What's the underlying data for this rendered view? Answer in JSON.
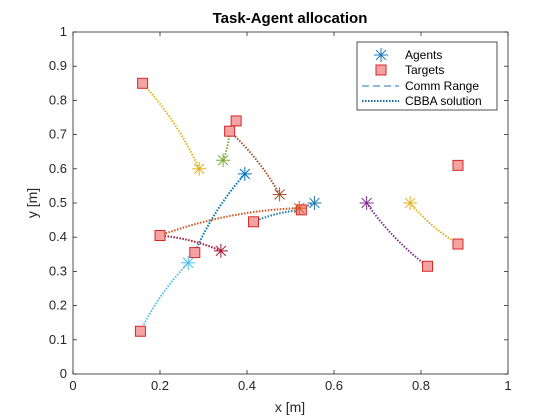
{
  "chart_data": {
    "type": "scatter",
    "title": "Task-Agent allocation",
    "xlabel": "x [m]",
    "ylabel": "y [m]",
    "xlim": [
      0,
      1
    ],
    "ylim": [
      0,
      1
    ],
    "xticks": [
      "0",
      "0.2",
      "0.4",
      "0.6",
      "0.8",
      "1"
    ],
    "yticks": [
      "0",
      "0.1",
      "0.2",
      "0.3",
      "0.4",
      "0.5",
      "0.6",
      "0.7",
      "0.8",
      "0.9",
      "1"
    ],
    "grid": false,
    "legend_position": "top-right",
    "legend": [
      "Agents",
      "Targets",
      "Comm Range",
      "CBBA solution"
    ],
    "targets": [
      {
        "x": 0.16,
        "y": 0.85
      },
      {
        "x": 0.375,
        "y": 0.74
      },
      {
        "x": 0.36,
        "y": 0.71
      },
      {
        "x": 0.885,
        "y": 0.61
      },
      {
        "x": 0.525,
        "y": 0.48
      },
      {
        "x": 0.415,
        "y": 0.445
      },
      {
        "x": 0.2,
        "y": 0.405
      },
      {
        "x": 0.885,
        "y": 0.38
      },
      {
        "x": 0.28,
        "y": 0.355
      },
      {
        "x": 0.815,
        "y": 0.315
      },
      {
        "x": 0.155,
        "y": 0.125
      }
    ],
    "agents": [
      {
        "x": 0.29,
        "y": 0.6,
        "color": "#e0b01c",
        "path": [
          [
            0.16,
            0.85
          ]
        ]
      },
      {
        "x": 0.345,
        "y": 0.625,
        "color": "#77ac30",
        "path": [
          [
            0.36,
            0.71
          ],
          [
            0.375,
            0.74
          ]
        ]
      },
      {
        "x": 0.395,
        "y": 0.585,
        "color": "#0072bd",
        "path": [
          [
            0.28,
            0.355
          ]
        ]
      },
      {
        "x": 0.475,
        "y": 0.525,
        "color": "#a0522d",
        "path": [
          [
            0.36,
            0.71
          ]
        ]
      },
      {
        "x": 0.555,
        "y": 0.5,
        "color": "#1f77b4",
        "path": [
          [
            0.525,
            0.48
          ],
          [
            0.415,
            0.445
          ]
        ]
      },
      {
        "x": 0.52,
        "y": 0.485,
        "color": "#d95319",
        "path": [
          [
            0.2,
            0.405
          ]
        ]
      },
      {
        "x": 0.34,
        "y": 0.36,
        "color": "#a2142f",
        "path": [
          [
            0.2,
            0.405
          ]
        ]
      },
      {
        "x": 0.265,
        "y": 0.325,
        "color": "#4dbeee",
        "path": [
          [
            0.155,
            0.125
          ]
        ]
      },
      {
        "x": 0.675,
        "y": 0.5,
        "color": "#7e2f8e",
        "path": [
          [
            0.815,
            0.315
          ]
        ]
      },
      {
        "x": 0.775,
        "y": 0.5,
        "color": "#e0b01c",
        "path": [
          [
            0.885,
            0.38
          ]
        ]
      }
    ],
    "colors": {
      "agent_legend": "#1f77b4",
      "target_face": "#f4a3a3",
      "target_edge": "#d62728",
      "comm_range": "#1f77b4",
      "cbba_legend": "#0e6ea3"
    }
  }
}
